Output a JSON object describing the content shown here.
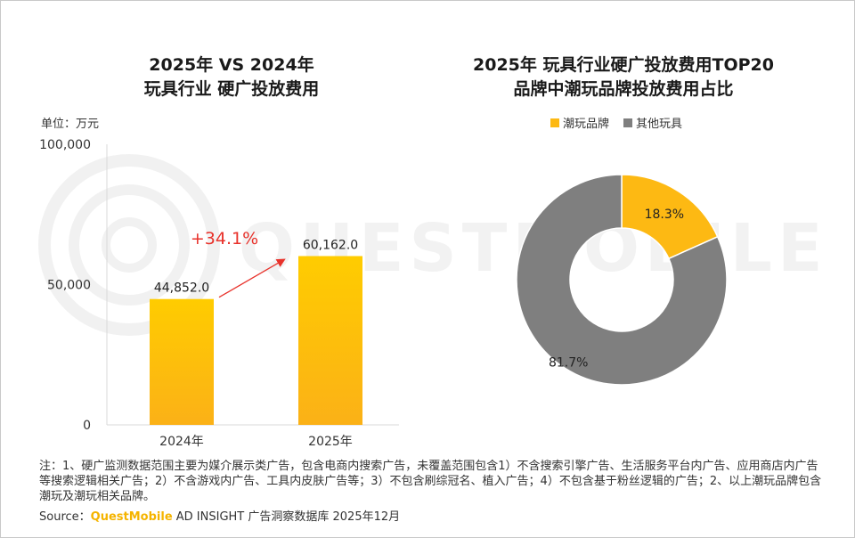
{
  "left_title": [
    "2025年 VS 2024年",
    "玩具行业 硬广投放费用"
  ],
  "right_title": [
    "2025年 玩具行业硬广投放费用TOP20",
    "品牌中潮玩品牌投放费用占比"
  ],
  "unit_label": "单位：万元",
  "growth_label": "+34.1%",
  "watermark": "QUESTMOBILE",
  "colors": {
    "bar": "#fdb913",
    "donut_orange": "#fdb913",
    "donut_gray": "#7f7f7f",
    "arrow": "#e8322b",
    "growth_text": "#e8322b"
  },
  "chart_data": [
    {
      "type": "bar",
      "title": "2025年 VS 2024年 玩具行业 硬广投放费用",
      "ylabel": "单位：万元",
      "categories": [
        "2024年",
        "2025年"
      ],
      "values": [
        44852.0,
        60162.0
      ],
      "value_labels": [
        "44,852.0",
        "60,162.0"
      ],
      "ylim": [
        0,
        100000
      ],
      "yticks": [
        "0",
        "50,000",
        "100,000"
      ],
      "annotation": "+34.1%"
    },
    {
      "type": "pie",
      "title": "2025年 玩具行业硬广投放费用TOP20品牌中潮玩品牌投放费用占比",
      "style": "donut",
      "labels": [
        "潮玩品牌",
        "其他玩具"
      ],
      "values": [
        18.3,
        81.7
      ],
      "value_labels": [
        "18.3%",
        "81.7%"
      ],
      "legend": "top"
    }
  ],
  "notes": "注：1、硬广监测数据范围主要为媒介展示类广告，包含电商内搜索广告，未覆盖范围包含1）不含搜索引擎广告、生活服务平台内广告、应用商店内广告等搜索逻辑相关广告；2）不含游戏内广告、工具内皮肤广告等；3）不包含刷综冠名、植入广告；4）不包含基于粉丝逻辑的广告；2、以上潮玩品牌包含潮玩及潮玩相关品牌。",
  "source_prefix": "Source：",
  "source_brand": "QuestMobile",
  "source_rest": " AD INSIGHT 广告洞察数据库 2025年12月"
}
